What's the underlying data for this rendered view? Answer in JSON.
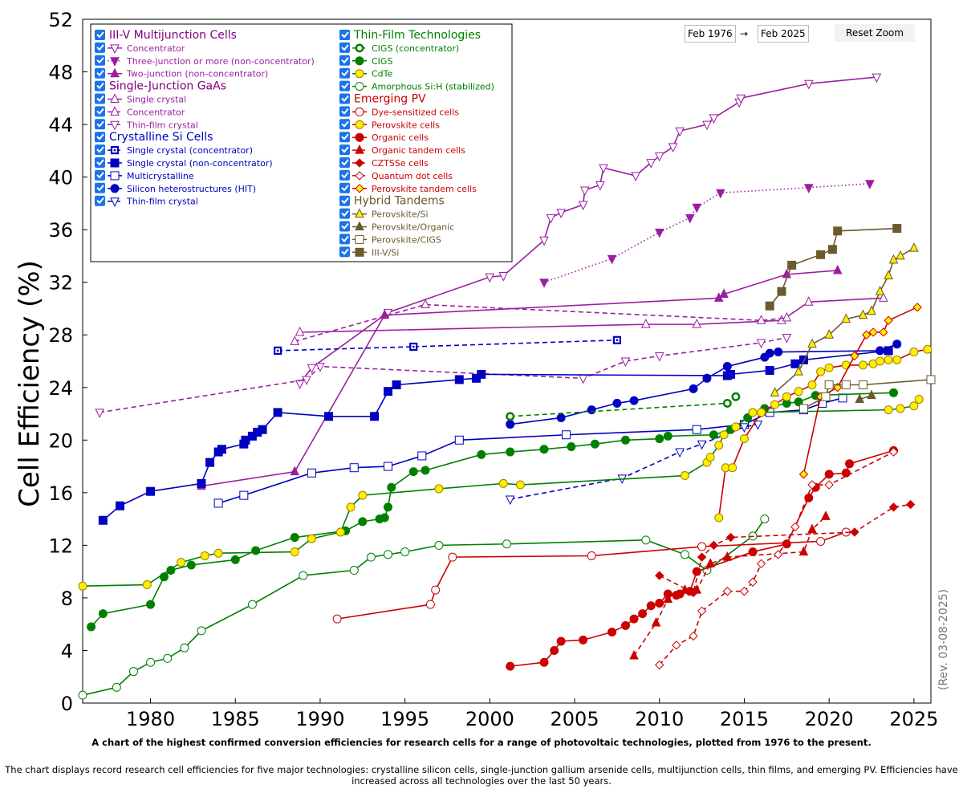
{
  "chart_data": {
    "type": "line",
    "ylabel": "Cell Efficiency (%)",
    "xlim": [
      1976,
      2026
    ],
    "ylim": [
      0,
      52
    ],
    "xticks": [
      "1980",
      "1985",
      "1990",
      "1995",
      "2000",
      "2005",
      "2010",
      "2015",
      "2020",
      "2025"
    ],
    "yticks": [
      "0",
      "4",
      "8",
      "12",
      "16",
      "20",
      "24",
      "28",
      "32",
      "36",
      "40",
      "44",
      "48",
      "52"
    ],
    "revision": "(Rev. 03-08-2025)",
    "caption": "A chart of the highest confirmed conversion efficiencies for research cells for a range of photovoltaic technologies, plotted from 1976 to the present.",
    "description": "The chart displays record research cell efficiencies for five major technologies: crystalline silicon cells, single-junction gallium arsenide cells, multijunction cells, thin films, and emerging PV. Efficiencies have increased across all technologies over the last 50 years.",
    "legend_groups": [
      {
        "title": "III-V Multijunction Cells",
        "color": "#800080",
        "col": 0
      },
      {
        "title": "Single-Junction GaAs",
        "color": "#800080",
        "col": 0
      },
      {
        "title": "Crystalline Si Cells",
        "color": "#0000c0",
        "col": 0
      },
      {
        "title": "Thin-Film Technologies",
        "color": "#008000",
        "col": 1
      },
      {
        "title": "Emerging PV",
        "color": "#cc0000",
        "col": 1
      },
      {
        "title": "Hybrid Tandems",
        "color": "#6b5a2e",
        "col": 1
      }
    ],
    "series": [
      {
        "name": "Concentrator",
        "group": 0,
        "color": "#9a1fa0",
        "marker": "tri-down-open",
        "dash": "solid",
        "x": [
          1988.8,
          1989.5,
          1994,
          2000,
          2000.8,
          2003.2,
          2003.6,
          2004.2,
          2005.5,
          2005.6,
          2006.5,
          2006.7,
          2008.6,
          2009.5,
          2010,
          2010.8,
          2011.2,
          2012.8,
          2013.2,
          2014.7,
          2014.8,
          2018.8,
          2022.8
        ],
        "y": [
          24.3,
          25.5,
          29.7,
          32.4,
          32.5,
          35.2,
          36.9,
          37.3,
          37.9,
          39.0,
          39.4,
          40.7,
          40.1,
          41.1,
          41.6,
          42.3,
          43.5,
          44.0,
          44.5,
          45.7,
          46.0,
          47.1,
          47.6
        ]
      },
      {
        "name": "Three-junction or more (non-concentrator)",
        "group": 0,
        "color": "#9a1fa0",
        "marker": "tri-down-filled",
        "dash": "dot",
        "x": [
          2003.2,
          2007.2,
          2010,
          2011.8,
          2012.2,
          2013.6,
          2018.8,
          2022.4
        ],
        "y": [
          32.0,
          33.8,
          35.8,
          36.9,
          37.7,
          38.8,
          39.2,
          39.5
        ]
      },
      {
        "name": "Two-junction (non-concentrator)",
        "group": 0,
        "color": "#9a1fa0",
        "marker": "tri-up-filled",
        "dash": "solid",
        "x": [
          1983,
          1988.5,
          1993.8,
          2013.5,
          2013.8,
          2017.5,
          2020.5
        ],
        "y": [
          16.5,
          17.6,
          29.5,
          30.8,
          31.1,
          32.6,
          32.9
        ]
      },
      {
        "name": "Single crystal",
        "group": 1,
        "color": "#9a1fa0",
        "marker": "tri-up-open",
        "dash": "solid",
        "x": [
          1988.8,
          2009.2,
          2012.2,
          2017.2,
          2018.8,
          2023.2
        ],
        "y": [
          28.2,
          28.8,
          28.8,
          29.1,
          30.5,
          30.8
        ]
      },
      {
        "name": "Concentrator",
        "group": 1,
        "color": "#9a1fa0",
        "marker": "tri-up-open",
        "dash": "dash",
        "x": [
          1988.5,
          1996.2,
          2016,
          2017.5
        ],
        "y": [
          27.5,
          30.3,
          29.1,
          29.3
        ]
      },
      {
        "name": "Thin-film crystal",
        "group": 1,
        "color": "#9a1fa0",
        "marker": "tri-down-open",
        "dash": "dash",
        "x": [
          1977,
          1989.2,
          1990,
          2005.5,
          2008,
          2010,
          2016,
          2017.5
        ],
        "y": [
          22.1,
          24.6,
          25.6,
          24.7,
          26.0,
          26.4,
          27.4,
          27.8
        ]
      },
      {
        "name": "Single crystal (concentrator)",
        "group": 2,
        "color": "#0000c0",
        "marker": "sq-dot",
        "dash": "dash",
        "x": [
          1987.5,
          1995.5,
          2007.5
        ],
        "y": [
          26.8,
          27.1,
          27.6
        ]
      },
      {
        "name": "Single crystal (non-concentrator)",
        "group": 2,
        "color": "#0000c0",
        "marker": "square-filled",
        "dash": "solid",
        "x": [
          1977.2,
          1978.2,
          1980,
          1983,
          1983.5,
          1984,
          1984.2,
          1985.5,
          1985.6,
          1986,
          1986.3,
          1986.6,
          1987.5,
          1990.5,
          1993.2,
          1994,
          1994.5,
          1998.2,
          1999.2,
          1999.5,
          2014,
          2014.2,
          2016.5,
          2018,
          2018.5,
          2023.5
        ],
        "y": [
          13.9,
          15.0,
          16.1,
          16.7,
          18.3,
          19.1,
          19.3,
          19.7,
          20.0,
          20.3,
          20.6,
          20.8,
          22.1,
          21.8,
          21.8,
          23.7,
          24.2,
          24.6,
          24.7,
          25.0,
          24.9,
          25.0,
          25.3,
          25.8,
          26.1,
          26.8
        ]
      },
      {
        "name": "Multicrystalline",
        "group": 2,
        "color": "#0000c0",
        "marker": "square-open",
        "dash": "solid",
        "x": [
          1984,
          1985.5,
          1989.5,
          1992,
          1994,
          1996,
          1998.2,
          2004.5,
          2012.2,
          2015,
          2016.5,
          2018.5,
          2019.6,
          2020.8
        ],
        "y": [
          15.2,
          15.8,
          17.5,
          17.9,
          18.0,
          18.8,
          20.0,
          20.4,
          20.8,
          21.2,
          22.1,
          22.3,
          22.8,
          23.2
        ]
      },
      {
        "name": "Silicon heterostructures (HIT)",
        "group": 2,
        "color": "#0000c0",
        "marker": "circle-filled",
        "dash": "solid",
        "x": [
          2001.2,
          2004.2,
          2006,
          2007.5,
          2008.5,
          2012,
          2012.8,
          2014,
          2016.2,
          2016.5,
          2017,
          2023,
          2024
        ],
        "y": [
          21.2,
          21.7,
          22.3,
          22.8,
          23.0,
          23.9,
          24.7,
          25.6,
          26.3,
          26.6,
          26.7,
          26.8,
          27.3
        ]
      },
      {
        "name": "Thin-film crystal",
        "group": 2,
        "color": "#0000c0",
        "marker": "tri-down-open",
        "dash": "dash",
        "x": [
          2001.2,
          2007.8,
          2011.2,
          2012.5,
          2015,
          2015.8
        ],
        "y": [
          15.5,
          17.1,
          19.1,
          19.7,
          21.0,
          21.2
        ]
      },
      {
        "name": "CIGS (concentrator)",
        "group": 3,
        "color": "#008000",
        "marker": "circle-bold",
        "dash": "dash",
        "x": [
          2001.2,
          2014,
          2014.5
        ],
        "y": [
          21.8,
          22.8,
          23.3
        ]
      },
      {
        "name": "CIGS",
        "group": 3,
        "color": "#008000",
        "marker": "circle-filled",
        "dash": "solid",
        "x": [
          1976.5,
          1977.2,
          1980,
          1980.8,
          1981.2,
          1982.4,
          1985,
          1986.2,
          1988.5,
          1991.5,
          1992.5,
          1993.5,
          1993.8,
          1994,
          1994.2,
          1995.5,
          1996.2,
          1999.5,
          2001.2,
          2003.2,
          2004.8,
          2006.2,
          2008,
          2010,
          2010.5,
          2013.2,
          2014.2,
          2015.2,
          2016.2,
          2017.5,
          2018.2,
          2019.2,
          2023.8
        ],
        "y": [
          5.8,
          6.8,
          7.5,
          9.6,
          10.1,
          10.5,
          10.9,
          11.6,
          12.6,
          13.1,
          13.8,
          14.0,
          14.1,
          14.9,
          16.4,
          17.6,
          17.7,
          18.9,
          19.1,
          19.3,
          19.5,
          19.7,
          20.0,
          20.1,
          20.3,
          20.4,
          20.8,
          21.7,
          22.4,
          22.8,
          22.9,
          23.4,
          23.6
        ]
      },
      {
        "name": "CdTe",
        "group": 3,
        "color": "#008000",
        "marker": "circle-yellow",
        "dash": "solid",
        "x": [
          1976,
          1979.8,
          1981.8,
          1983.2,
          1984,
          1988.5,
          1989.5,
          1991.2,
          1991.8,
          1992.5,
          1997,
          2000.8,
          2001.8,
          2011.5,
          2012.8,
          2013,
          2013.5,
          2013.8,
          2014.5,
          2015.5,
          2023.5,
          2024.2,
          2025,
          2025.3
        ],
        "y": [
          8.9,
          9.0,
          10.7,
          11.2,
          11.4,
          11.5,
          12.5,
          13.0,
          14.9,
          15.8,
          16.3,
          16.7,
          16.6,
          17.3,
          18.3,
          18.7,
          19.6,
          20.4,
          21.0,
          22.1,
          22.3,
          22.4,
          22.6,
          23.1
        ]
      },
      {
        "name": "Amorphous Si:H (stabilized)",
        "group": 3,
        "color": "#008000",
        "marker": "circle-open",
        "dash": "solid",
        "x": [
          1976,
          1978,
          1979,
          1980,
          1981,
          1982,
          1983,
          1986,
          1989,
          1992,
          1993,
          1994,
          1995,
          1997,
          2001,
          2009.2,
          2011.5,
          2012.8,
          2015.5,
          2016.2
        ],
        "y": [
          0.6,
          1.2,
          2.4,
          3.1,
          3.4,
          4.2,
          5.5,
          7.5,
          9.7,
          10.1,
          11.1,
          11.3,
          11.5,
          12.0,
          12.1,
          12.4,
          11.3,
          10.1,
          12.7,
          14.0
        ]
      },
      {
        "name": "Dye-sensitized cells",
        "group": 4,
        "color": "#cc0000",
        "marker": "circle-open",
        "dash": "solid",
        "x": [
          1991,
          1996.5,
          1996.8,
          1997.8,
          2006,
          2012.5,
          2019.5,
          2021
        ],
        "y": [
          6.4,
          7.5,
          8.6,
          11.1,
          11.2,
          11.9,
          12.3,
          13.0
        ]
      },
      {
        "name": "Perovskite cells",
        "group": 4,
        "color": "#cc0000",
        "marker": "circle-yellow",
        "dash": "solid",
        "x": [
          2013.5,
          2013.9,
          2014.3,
          2015,
          2016,
          2016.8,
          2017.5,
          2018.2,
          2019,
          2019.5,
          2020,
          2021,
          2022,
          2022.6,
          2023,
          2023.5,
          2024,
          2025,
          2025.8
        ],
        "y": [
          14.1,
          17.9,
          17.9,
          20.1,
          22.1,
          22.7,
          23.3,
          23.7,
          24.2,
          25.2,
          25.5,
          25.7,
          25.7,
          25.8,
          26.0,
          26.1,
          26.1,
          26.7,
          26.9
        ]
      },
      {
        "name": "Organic cells",
        "group": 4,
        "color": "#cc0000",
        "marker": "circle-filled",
        "dash": "solid",
        "x": [
          2001.2,
          2003.2,
          2003.8,
          2004.2,
          2005.5,
          2007.2,
          2008,
          2008.5,
          2009,
          2009.5,
          2010,
          2010.5,
          2011,
          2011.2,
          2011.8,
          2012.2,
          2015.5,
          2017.5,
          2018.8,
          2019.2,
          2020,
          2021,
          2021.2,
          2023.8
        ],
        "y": [
          2.8,
          3.1,
          4.0,
          4.7,
          4.8,
          5.4,
          5.9,
          6.4,
          6.8,
          7.4,
          7.6,
          8.3,
          8.2,
          8.3,
          8.5,
          10.0,
          11.5,
          12.1,
          15.6,
          16.4,
          17.4,
          17.5,
          18.2,
          19.2
        ]
      },
      {
        "name": "Organic tandem cells",
        "group": 4,
        "color": "#cc0000",
        "marker": "tri-up-filled",
        "dash": "dash",
        "x": [
          2008.5,
          2009.8,
          2010.5,
          2011.5,
          2012.2,
          2013,
          2014,
          2018.5,
          2019,
          2019.8
        ],
        "y": [
          3.6,
          6.1,
          7.9,
          8.6,
          8.6,
          10.6,
          11.1,
          11.5,
          13.2,
          14.2
        ]
      },
      {
        "name": "CZTSSe cells",
        "group": 4,
        "color": "#cc0000",
        "marker": "diamond-filled",
        "dash": "dash",
        "x": [
          2010,
          2012,
          2012.5,
          2013.2,
          2014.2,
          2021.5,
          2023.8,
          2024.8
        ],
        "y": [
          9.7,
          8.4,
          11.1,
          12.0,
          12.6,
          13.0,
          14.9,
          15.1
        ]
      },
      {
        "name": "Quantum dot cells",
        "group": 4,
        "color": "#cc0000",
        "marker": "diamond-open",
        "dash": "dash",
        "x": [
          2010,
          2011,
          2012,
          2012.5,
          2014,
          2015,
          2015.5,
          2016,
          2017,
          2018,
          2019,
          2020,
          2023.8
        ],
        "y": [
          2.9,
          4.4,
          5.1,
          7.0,
          8.5,
          8.5,
          9.2,
          10.6,
          11.3,
          13.4,
          16.6,
          16.6,
          19.1
        ]
      },
      {
        "name": "Perovskite tandem cells",
        "group": 4,
        "color": "#cc0000",
        "marker": "diamond-yellow",
        "dash": "solid",
        "x": [
          2018.5,
          2019.5,
          2020.5,
          2021.5,
          2022.2,
          2022.6,
          2023.2,
          2023.5,
          2025.2
        ],
        "y": [
          17.4,
          23.3,
          24.0,
          26.4,
          28.0,
          28.2,
          28.2,
          29.1,
          30.1
        ]
      },
      {
        "name": "Perovskite/Si",
        "group": 5,
        "color": "#6b5a2e",
        "marker": "tri-up-yellow",
        "dash": "solid",
        "x": [
          2016.8,
          2018.2,
          2019,
          2020,
          2021,
          2022,
          2022.5,
          2023,
          2023.5,
          2023.8,
          2024.2,
          2025
        ],
        "y": [
          23.6,
          25.2,
          27.3,
          28.0,
          29.2,
          29.5,
          29.8,
          31.3,
          32.5,
          33.7,
          34.0,
          34.6
        ]
      },
      {
        "name": "Perovskite/Organic",
        "group": 5,
        "color": "#6b5a2e",
        "marker": "tri-up-filled",
        "dash": "solid",
        "x": [
          2021.8,
          2022.5
        ],
        "y": [
          23.1,
          23.4
        ]
      },
      {
        "name": "Perovskite/CIGS",
        "group": 5,
        "color": "#6b5a2e",
        "marker": "square-open",
        "dash": "solid",
        "x": [
          2018.5,
          2019.8,
          2020,
          2021,
          2022,
          2026
        ],
        "y": [
          22.4,
          23.3,
          24.2,
          24.2,
          24.2,
          24.6
        ]
      },
      {
        "name": "III-V/Si",
        "group": 5,
        "color": "#6b5a2e",
        "marker": "square-filled",
        "dash": "solid",
        "x": [
          2016.5,
          2017.2,
          2017.8,
          2019.5,
          2020.2,
          2020.5,
          2024
        ],
        "y": [
          30.2,
          31.3,
          33.3,
          34.1,
          34.5,
          35.9,
          36.1
        ]
      }
    ]
  },
  "controls": {
    "date_from": "Feb 1976",
    "date_to": "Feb 2025",
    "arrow": "→",
    "reset_label": "Reset Zoom"
  }
}
